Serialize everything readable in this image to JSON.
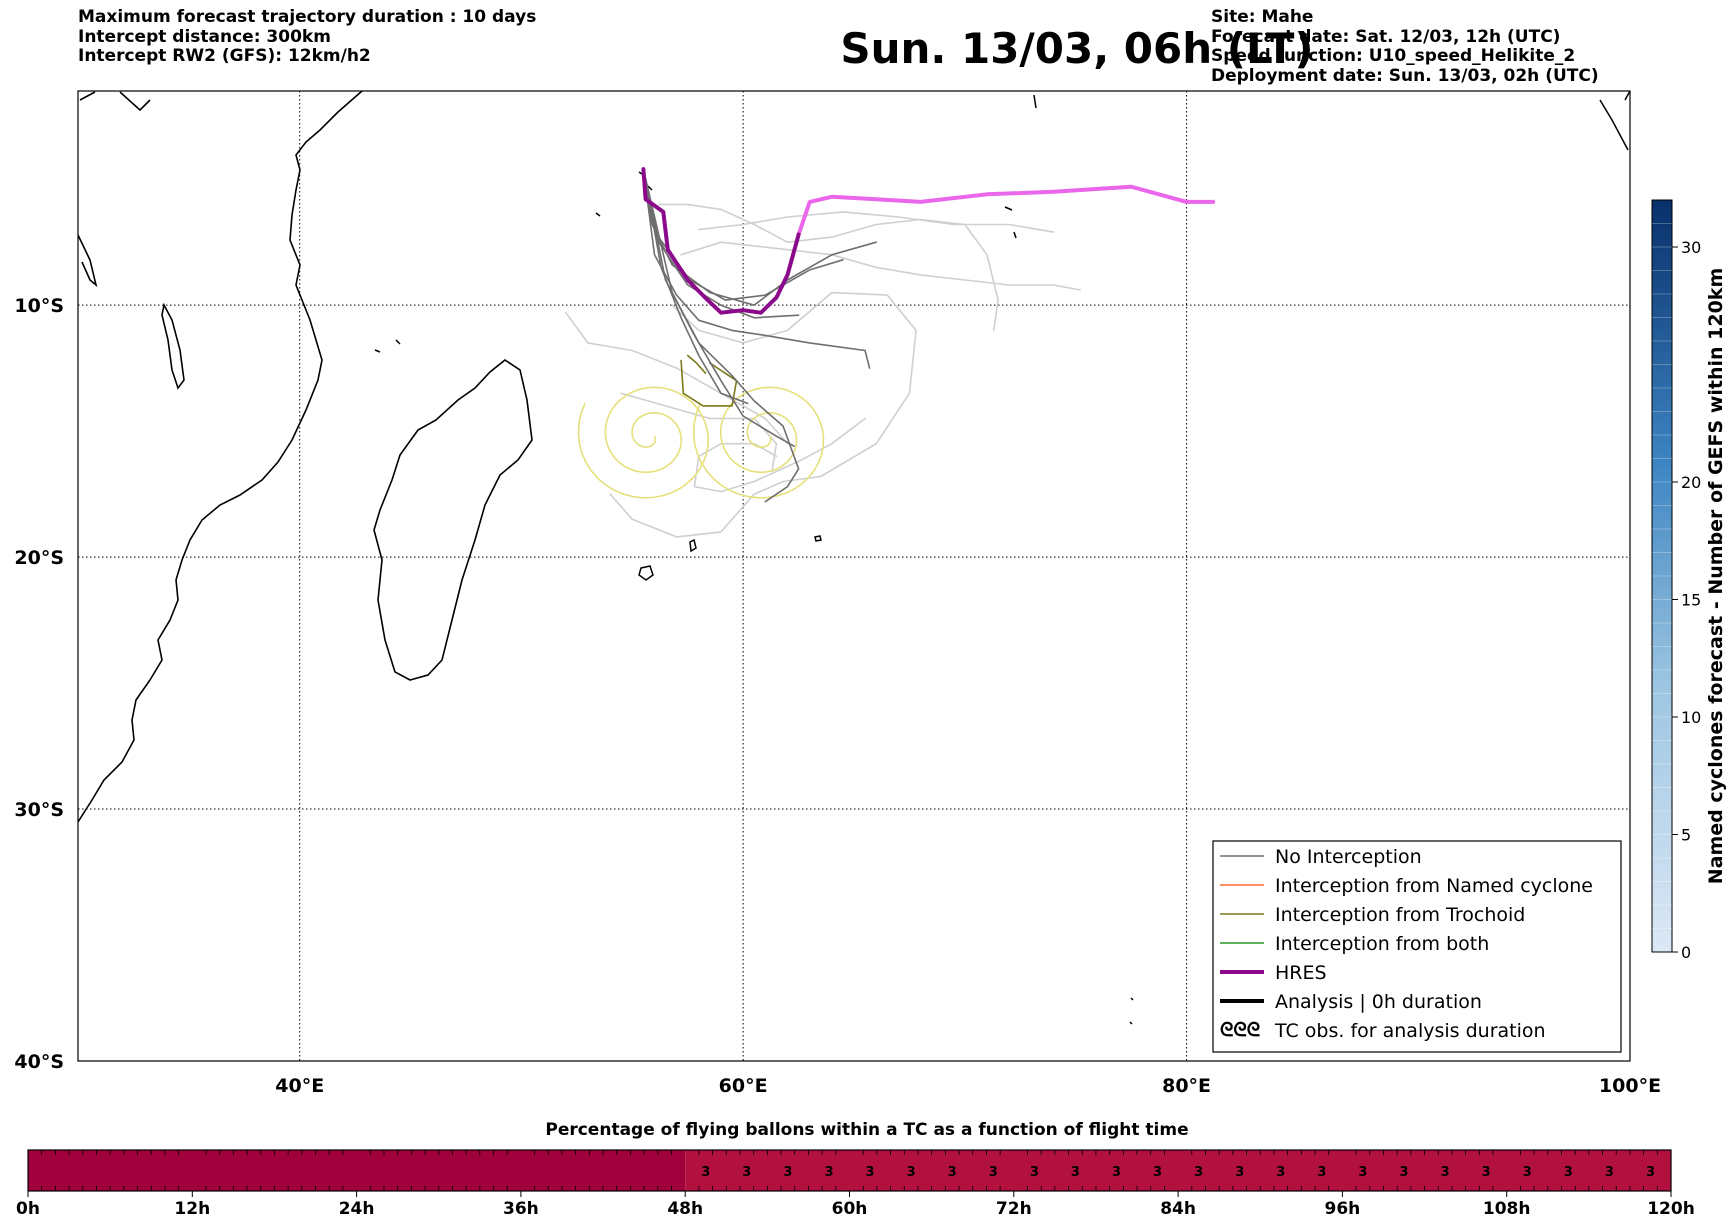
{
  "header": {
    "left_lines": [
      "Maximum forecast trajectory duration : 10 days",
      "Intercept distance: 300km",
      "Intercept RW2 (GFS):  12km/h2"
    ],
    "title": "Sun. 13/03, 06h (LT)",
    "right_lines": [
      "Site: Mahe",
      "Forecast date: Sat. 12/03, 12h (UTC)",
      "Speed function: U10_speed_Helikite_2",
      "Deployment date: Sun. 13/03, 02h (UTC)"
    ]
  },
  "map": {
    "lon_range": [
      30,
      100
    ],
    "lat_range": [
      -40,
      -1.5
    ],
    "lon_ticks": [
      {
        "value": 40,
        "label": "40°E"
      },
      {
        "value": 60,
        "label": "60°E"
      },
      {
        "value": 80,
        "label": "80°E"
      },
      {
        "value": 100,
        "label": "100°E"
      }
    ],
    "lat_ticks": [
      {
        "value": -10,
        "label": "10°S"
      },
      {
        "value": -20,
        "label": "20°S"
      },
      {
        "value": -30,
        "label": "30°S"
      },
      {
        "value": -40,
        "label": "40°S"
      }
    ],
    "grid": true,
    "site": {
      "name": "Mahe",
      "lon": 55.5,
      "lat": -4.6
    },
    "colors": {
      "no_interception": "#6e6e6e",
      "no_interception_light": "#cfcfcf",
      "named_cyclone": "#ff6a2a",
      "trochoid": "#7d7a1a",
      "both": "#2a9a2a",
      "hres": "#8b0a8b",
      "hres_extended": "#ea66ea",
      "analysis": "#000000",
      "tc_obs": "#e6e07a"
    }
  },
  "trajectories": {
    "hres": [
      [
        55.5,
        -4.6
      ],
      [
        55.6,
        -5.8
      ],
      [
        56.4,
        -6.3
      ],
      [
        56.6,
        -7.8
      ],
      [
        57.5,
        -9.0
      ],
      [
        58.4,
        -9.8
      ],
      [
        59.0,
        -10.3
      ],
      [
        60.0,
        -10.2
      ],
      [
        60.8,
        -10.3
      ],
      [
        61.5,
        -9.7
      ],
      [
        62.0,
        -8.8
      ],
      [
        62.5,
        -7.2
      ]
    ],
    "hres_extended": [
      [
        62.5,
        -7.2
      ],
      [
        63.0,
        -5.9
      ],
      [
        64.0,
        -5.7
      ],
      [
        66.0,
        -5.8
      ],
      [
        68.0,
        -5.9
      ],
      [
        71.0,
        -5.6
      ],
      [
        74.0,
        -5.5
      ],
      [
        77.5,
        -5.3
      ],
      [
        80.0,
        -5.9
      ],
      [
        81.2,
        -5.9
      ]
    ],
    "no_interception_dark": [
      [
        [
          55.5,
          -4.6
        ],
        [
          55.9,
          -6.8
        ],
        [
          56.8,
          -8.4
        ],
        [
          58.5,
          -9.5
        ],
        [
          60.5,
          -10.0
        ],
        [
          62.0,
          -9.0
        ],
        [
          64.0,
          -8.0
        ],
        [
          66.0,
          -7.5
        ]
      ],
      [
        [
          55.5,
          -4.6
        ],
        [
          56.1,
          -7.2
        ],
        [
          57.6,
          -9.0
        ],
        [
          59.2,
          -9.8
        ],
        [
          61.0,
          -9.6
        ],
        [
          63.0,
          -8.6
        ],
        [
          64.5,
          -8.2
        ]
      ],
      [
        [
          55.5,
          -4.6
        ],
        [
          56.0,
          -8.0
        ],
        [
          57.0,
          -9.6
        ],
        [
          58.0,
          -10.6
        ],
        [
          59.5,
          -11.0
        ],
        [
          61.0,
          -11.2
        ],
        [
          63.0,
          -11.5
        ],
        [
          65.5,
          -11.8
        ],
        [
          65.7,
          -12.5
        ]
      ],
      [
        [
          55.5,
          -4.6
        ],
        [
          56.3,
          -8.5
        ],
        [
          57.2,
          -10.5
        ],
        [
          58.0,
          -12.0
        ],
        [
          59.0,
          -13.5
        ],
        [
          60.2,
          -13.9
        ]
      ],
      [
        [
          55.5,
          -4.6
        ],
        [
          56.5,
          -9.0
        ],
        [
          57.8,
          -11.2
        ],
        [
          59.0,
          -13.0
        ],
        [
          60.0,
          -14.4
        ],
        [
          61.5,
          -15.2
        ],
        [
          62.3,
          -15.6
        ]
      ],
      [
        [
          55.5,
          -4.6
        ],
        [
          56.8,
          -9.5
        ],
        [
          58.0,
          -11.5
        ],
        [
          59.5,
          -12.8
        ],
        [
          60.5,
          -13.8
        ],
        [
          61.8,
          -14.8
        ],
        [
          62.5,
          -16.5
        ],
        [
          62.0,
          -17.2
        ],
        [
          61.0,
          -17.8
        ]
      ],
      [
        [
          55.5,
          -4.6
        ],
        [
          56.2,
          -7.5
        ],
        [
          57.5,
          -9.2
        ],
        [
          59.0,
          -10.0
        ],
        [
          60.5,
          -10.5
        ],
        [
          62.5,
          -10.4
        ]
      ]
    ],
    "no_interception_light": [
      [
        [
          56.2,
          -6.0
        ],
        [
          57.5,
          -6.0
        ],
        [
          59.0,
          -6.2
        ],
        [
          60.5,
          -6.8
        ],
        [
          62.0,
          -7.5
        ],
        [
          64.0,
          -7.3
        ],
        [
          66.0,
          -6.8
        ],
        [
          68.0,
          -6.6
        ],
        [
          70.0,
          -6.8
        ],
        [
          71.0,
          -8.0
        ],
        [
          71.5,
          -9.8
        ],
        [
          71.3,
          -11.0
        ]
      ],
      [
        [
          58.0,
          -7.0
        ],
        [
          60.0,
          -6.8
        ],
        [
          62.0,
          -6.5
        ],
        [
          64.5,
          -6.3
        ],
        [
          67.0,
          -6.5
        ],
        [
          69.5,
          -6.8
        ],
        [
          72.0,
          -6.8
        ],
        [
          74.0,
          -7.1
        ]
      ],
      [
        [
          57.2,
          -8.0
        ],
        [
          59.0,
          -7.5
        ],
        [
          62.0,
          -7.8
        ],
        [
          64.0,
          -8.0
        ],
        [
          66.0,
          -8.5
        ],
        [
          68.0,
          -8.8
        ],
        [
          70.0,
          -9.0
        ],
        [
          72.0,
          -9.2
        ],
        [
          74.0,
          -9.2
        ],
        [
          75.2,
          -9.4
        ]
      ],
      [
        [
          56.8,
          -10.0
        ],
        [
          58.0,
          -11.0
        ],
        [
          60.0,
          -11.5
        ],
        [
          62.0,
          -11.0
        ],
        [
          64.0,
          -9.5
        ],
        [
          66.5,
          -9.6
        ],
        [
          67.8,
          -11.0
        ],
        [
          67.5,
          -13.5
        ],
        [
          66.0,
          -15.5
        ],
        [
          63.5,
          -16.8
        ],
        [
          61.8,
          -17.0
        ],
        [
          60.5,
          -17.5
        ],
        [
          59.0,
          -19.0
        ],
        [
          57.0,
          -19.2
        ],
        [
          55.0,
          -18.5
        ],
        [
          54.0,
          -17.5
        ]
      ],
      [
        [
          52.0,
          -10.3
        ],
        [
          53.0,
          -11.5
        ],
        [
          55.0,
          -11.8
        ],
        [
          57.0,
          -12.5
        ],
        [
          59.0,
          -13.5
        ],
        [
          61.0,
          -14.5
        ],
        [
          62.0,
          -15.5
        ]
      ],
      [
        [
          54.5,
          -13.5
        ],
        [
          56.5,
          -14.0
        ],
        [
          58.5,
          -14.5
        ],
        [
          60.5,
          -14.5
        ],
        [
          61.5,
          -15.5
        ],
        [
          61.3,
          -16.6
        ]
      ],
      [
        [
          61.5,
          -16.0
        ],
        [
          60.5,
          -15.5
        ],
        [
          59.0,
          -15.5
        ],
        [
          58.0,
          -16.0
        ],
        [
          57.8,
          -17.2
        ],
        [
          59.0,
          -17.4
        ],
        [
          60.5,
          -17.0
        ],
        [
          62.5,
          -16.2
        ],
        [
          64.0,
          -15.5
        ],
        [
          65.5,
          -14.5
        ]
      ]
    ],
    "trochoid": [
      [
        [
          57.2,
          -12.2
        ],
        [
          57.3,
          -13.5
        ],
        [
          58.2,
          -14.0
        ],
        [
          59.5,
          -14.0
        ],
        [
          59.7,
          -13.0
        ],
        [
          58.5,
          -12.3
        ]
      ],
      [
        [
          57.5,
          -12.0
        ],
        [
          57.9,
          -12.3
        ],
        [
          58.3,
          -12.7
        ]
      ]
    ],
    "tc_obs_spirals": [
      {
        "lon": 55.8,
        "lat": -15.2
      },
      {
        "lon": 61.0,
        "lat": -15.2
      }
    ]
  },
  "legend": {
    "items": [
      {
        "label": "No Interception",
        "style": "no_interception"
      },
      {
        "label": "Interception from Named cyclone",
        "style": "named_cyclone"
      },
      {
        "label": "Interception from Trochoid",
        "style": "trochoid"
      },
      {
        "label": "Interception from both",
        "style": "both"
      },
      {
        "label": "HRES",
        "style": "hres"
      },
      {
        "label": "Analysis | 0h duration",
        "style": "analysis"
      },
      {
        "label": "TC obs. for analysis duration",
        "style": "tc_obs",
        "symbol": "ᘓᘓᘓ"
      }
    ]
  },
  "colorbar": {
    "title": "Named cyclones forecast - Number of GEFS within 120km",
    "range": [
      0,
      32
    ],
    "ticks": [
      {
        "value": 0,
        "label": "0"
      },
      {
        "value": 5,
        "label": "5"
      },
      {
        "value": 10,
        "label": "10"
      },
      {
        "value": 15,
        "label": "15"
      },
      {
        "value": 20,
        "label": "20"
      },
      {
        "value": 30,
        "label": "30"
      }
    ],
    "colormap": [
      "#dce8f6",
      "#08306b"
    ]
  },
  "bottom_bar": {
    "title": "Percentage of flying ballons within a TC as a function of flight time",
    "range_hours": [
      0,
      120
    ],
    "ticks": [
      {
        "value": 0,
        "label": "0h"
      },
      {
        "value": 12,
        "label": "12h"
      },
      {
        "value": 24,
        "label": "24h"
      },
      {
        "value": 36,
        "label": "36h"
      },
      {
        "value": 48,
        "label": "48h"
      },
      {
        "value": 60,
        "label": "60h"
      },
      {
        "value": 72,
        "label": "72h"
      },
      {
        "value": 84,
        "label": "84h"
      },
      {
        "value": 96,
        "label": "96h"
      },
      {
        "value": 108,
        "label": "108h"
      },
      {
        "value": 120,
        "label": "120h"
      }
    ],
    "segments": [
      {
        "from": 0,
        "to": 48,
        "percent": 0,
        "color": "#a0003c"
      },
      {
        "from": 48,
        "to": 120,
        "percent": 3,
        "color": "#b2103f"
      }
    ],
    "value_step_hours": 3,
    "value_label": "3"
  }
}
